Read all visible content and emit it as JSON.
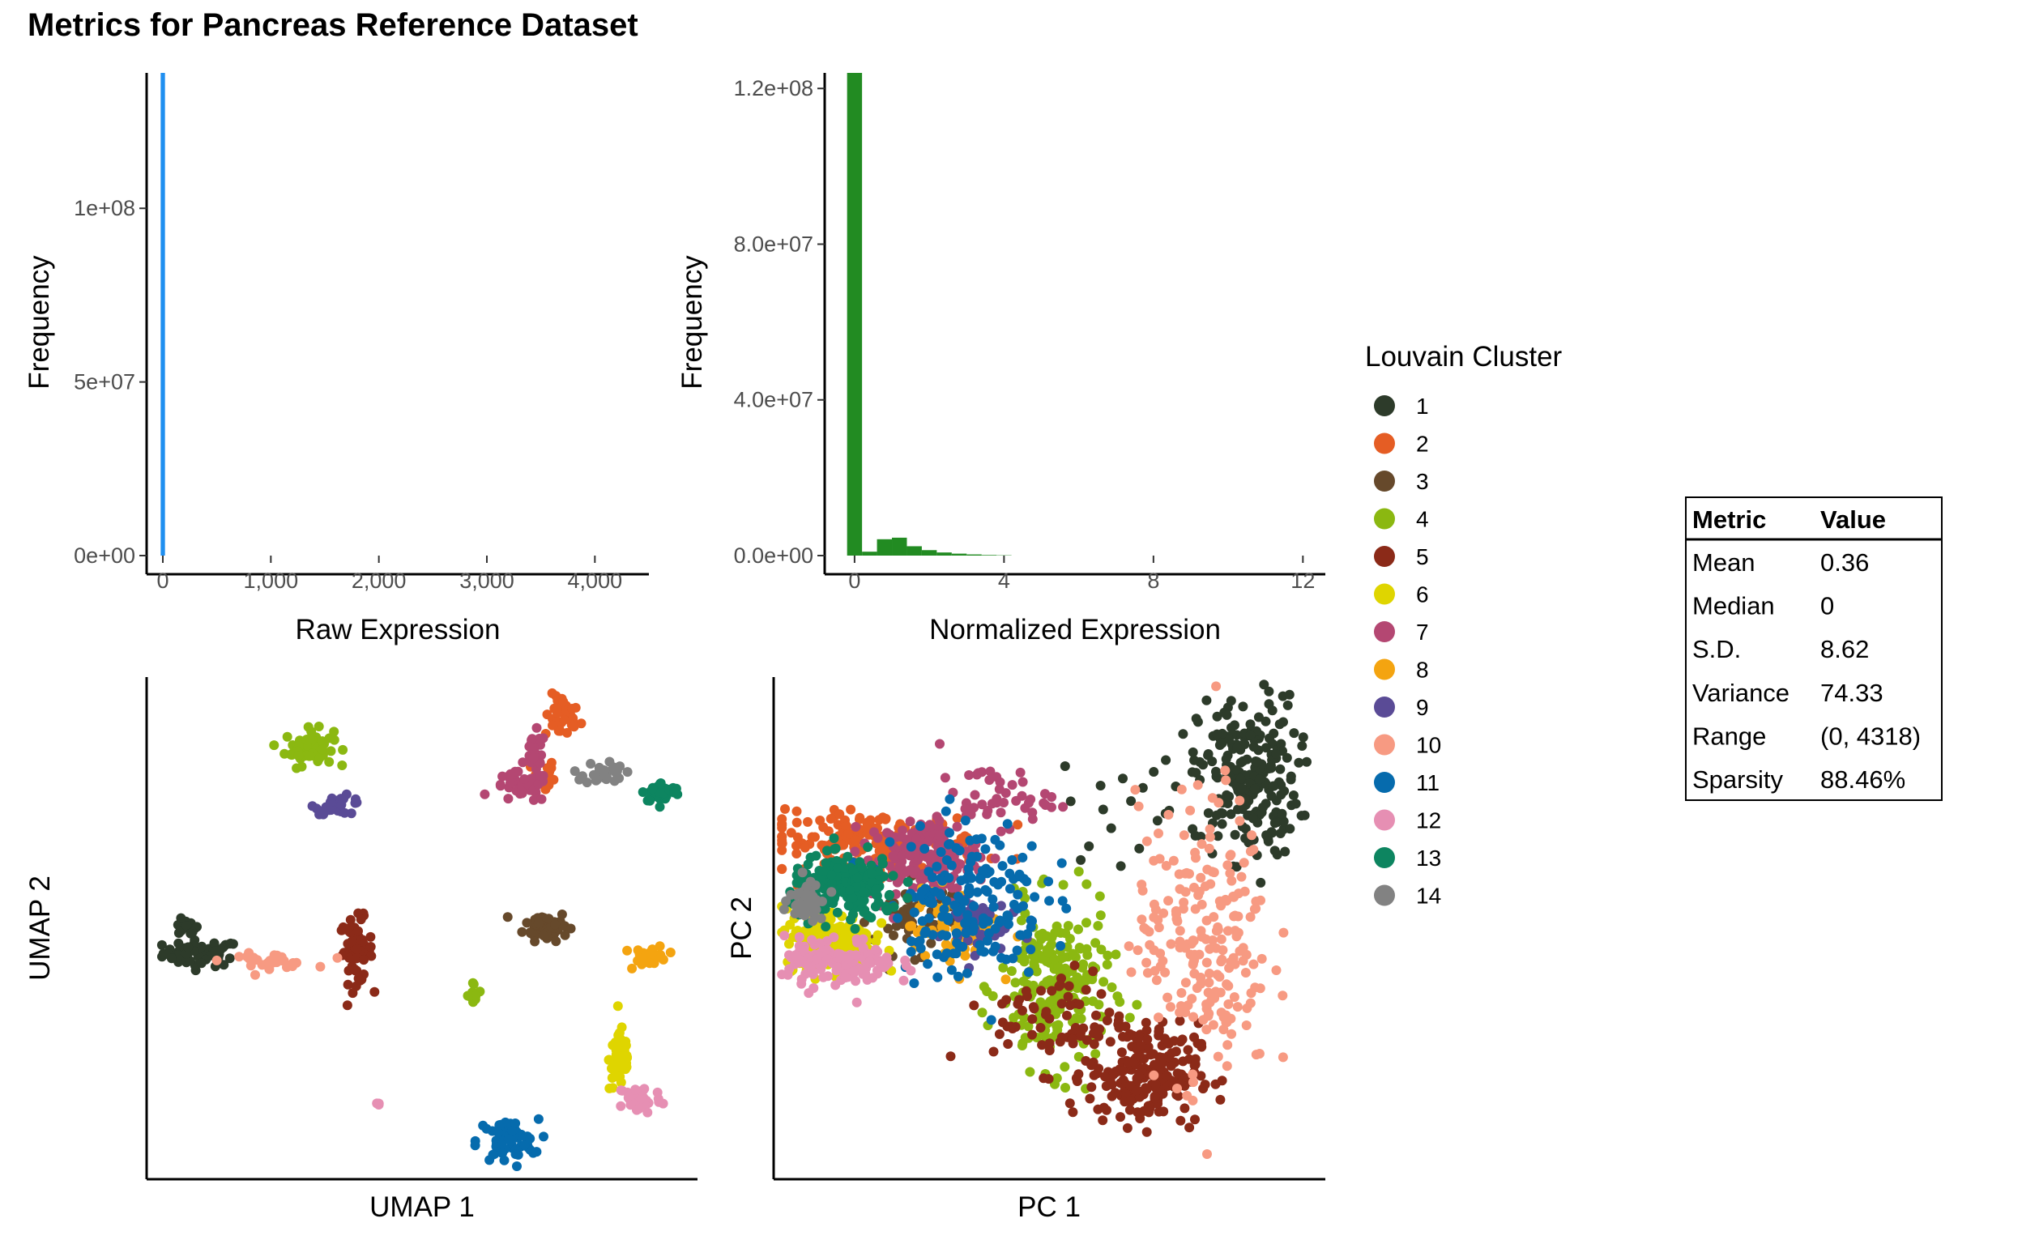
{
  "title": "Metrics for Pancreas Reference Dataset",
  "chart_data": [
    {
      "type": "bar",
      "name": "raw-histogram",
      "xlabel": "Raw Expression",
      "ylabel": "Frequency",
      "color": "#1f8ff0",
      "xlim": [
        -150,
        4500
      ],
      "ylim": [
        0,
        139000000
      ],
      "x_ticks": [
        {
          "value": 0,
          "label": "0"
        },
        {
          "value": 1000,
          "label": "1,000"
        },
        {
          "value": 2000,
          "label": "2,000"
        },
        {
          "value": 3000,
          "label": "3,000"
        },
        {
          "value": 4000,
          "label": "4,000"
        }
      ],
      "y_ticks": [
        {
          "value": 0,
          "label": "0e+00"
        },
        {
          "value": 50000000,
          "label": "5e+07"
        },
        {
          "value": 100000000,
          "label": "1e+08"
        }
      ],
      "bins": [
        {
          "x0": -20,
          "x1": 20,
          "count": 139000000
        }
      ]
    },
    {
      "type": "bar",
      "name": "normalized-histogram",
      "xlabel": "Normalized Expression",
      "ylabel": "Frequency",
      "color": "#228b22",
      "xlim": [
        -0.8,
        12.6
      ],
      "ylim": [
        0,
        124000000
      ],
      "x_ticks": [
        {
          "value": 0,
          "label": "0"
        },
        {
          "value": 4,
          "label": "4"
        },
        {
          "value": 8,
          "label": "8"
        },
        {
          "value": 12,
          "label": "12"
        }
      ],
      "y_ticks": [
        {
          "value": 0,
          "label": "0.0e+00"
        },
        {
          "value": 40000000,
          "label": "4.0e+07"
        },
        {
          "value": 80000000,
          "label": "8.0e+07"
        },
        {
          "value": 120000000,
          "label": "1.2e+08"
        }
      ],
      "bins": [
        {
          "x0": -0.2,
          "x1": 0.2,
          "count": 124000000
        },
        {
          "x0": 0.2,
          "x1": 0.6,
          "count": 1000000
        },
        {
          "x0": 0.6,
          "x1": 1.0,
          "count": 4200000
        },
        {
          "x0": 1.0,
          "x1": 1.4,
          "count": 4600000
        },
        {
          "x0": 1.4,
          "x1": 1.8,
          "count": 2400000
        },
        {
          "x0": 1.8,
          "x1": 2.2,
          "count": 1400000
        },
        {
          "x0": 2.2,
          "x1": 2.6,
          "count": 800000
        },
        {
          "x0": 2.6,
          "x1": 3.0,
          "count": 500000
        },
        {
          "x0": 3.0,
          "x1": 3.4,
          "count": 300000
        },
        {
          "x0": 3.4,
          "x1": 3.8,
          "count": 150000
        },
        {
          "x0": 3.8,
          "x1": 4.2,
          "count": 80000
        }
      ]
    },
    {
      "type": "scatter",
      "name": "umap-scatter",
      "xlabel": "UMAP 1",
      "ylabel": "UMAP 2",
      "xlim": [
        0,
        100
      ],
      "ylim": [
        0,
        100
      ],
      "grid": false,
      "clusters": [
        {
          "cluster": "1",
          "blobs": [
            [
              10,
              45,
              3.5,
              1.3,
              1.0
            ],
            [
              7,
              50,
              1.2,
              0.8,
              0.25
            ]
          ]
        },
        {
          "cluster": "2",
          "blobs": [
            [
              75.5,
              92,
              1.6,
              2.2,
              0.6
            ],
            [
              72,
              80,
              1.0,
              2.0,
              0.3
            ]
          ]
        },
        {
          "cluster": "3",
          "blobs": [
            [
              72.5,
              50.5,
              2.0,
              1.5,
              1.0
            ]
          ]
        },
        {
          "cluster": "4",
          "blobs": [
            [
              29.5,
              86,
              2.2,
              1.8,
              1.0
            ],
            [
              59.5,
              37,
              0.6,
              1.2,
              0.15
            ]
          ]
        },
        {
          "cluster": "5",
          "blobs": [
            [
              38,
              45.5,
              1.5,
              3.2,
              1.0
            ]
          ]
        },
        {
          "cluster": "6",
          "blobs": [
            [
              86,
              24,
              1.0,
              3.2,
              1.0
            ]
          ]
        },
        {
          "cluster": "7",
          "blobs": [
            [
              68,
              78,
              2.5,
              1.5,
              0.7
            ],
            [
              70.5,
              85,
              1.0,
              2.0,
              0.4
            ]
          ]
        },
        {
          "cluster": "8",
          "blobs": [
            [
              91.5,
              44.5,
              1.5,
              1.0,
              0.6
            ]
          ]
        },
        {
          "cluster": "9",
          "blobs": [
            [
              35,
              74.5,
              2.2,
              0.9,
              0.5
            ]
          ]
        },
        {
          "cluster": "10",
          "blobs": [
            [
              22,
              43.5,
              4.0,
              0.7,
              0.5
            ]
          ]
        },
        {
          "cluster": "11",
          "blobs": [
            [
              65.5,
              7.5,
              2.8,
              2.2,
              1.0
            ]
          ]
        },
        {
          "cluster": "12",
          "blobs": [
            [
              89.5,
              16,
              2.0,
              1.5,
              0.7
            ],
            [
              42,
              15,
              0.3,
              0.3,
              0.05
            ]
          ]
        },
        {
          "cluster": "13",
          "blobs": [
            [
              93.5,
              77,
              1.8,
              1.0,
              0.6
            ]
          ]
        },
        {
          "cluster": "14",
          "blobs": [
            [
              83,
              81,
              1.8,
              1.2,
              0.5
            ]
          ]
        }
      ]
    },
    {
      "type": "scatter",
      "name": "pca-scatter",
      "xlabel": "PC 1",
      "ylabel": "PC 2",
      "xlim": [
        0,
        100
      ],
      "ylim": [
        0,
        100
      ],
      "grid": false,
      "clusters": [
        {
          "cluster": "1",
          "blobs": [
            [
              86,
              80,
              4.5,
              8,
              1.0
            ],
            [
              68,
              75,
              8,
              6,
              0.1
            ]
          ]
        },
        {
          "cluster": "2",
          "blobs": [
            [
              18,
              67,
              10,
              3.0,
              0.8
            ]
          ]
        },
        {
          "cluster": "3",
          "blobs": [
            [
              26,
              52,
              4,
              3.5,
              0.3
            ]
          ]
        },
        {
          "cluster": "4",
          "blobs": [
            [
              51,
              38,
              5,
              8,
              1.0
            ]
          ]
        },
        {
          "cluster": "5",
          "blobs": [
            [
              67,
              21,
              5,
              5,
              1.0
            ],
            [
              52,
              32,
              6,
              5,
              0.3
            ]
          ]
        },
        {
          "cluster": "6",
          "blobs": [
            [
              10,
              48,
              4,
              3.0,
              1.0
            ]
          ]
        },
        {
          "cluster": "7",
          "blobs": [
            [
              27,
              64,
              5,
              4,
              0.7
            ],
            [
              40,
              76,
              5,
              3,
              0.2
            ]
          ]
        },
        {
          "cluster": "8",
          "blobs": [
            [
              33,
              50,
              4,
              4,
              0.3
            ]
          ]
        },
        {
          "cluster": "9",
          "blobs": [
            [
              36,
              51,
              3,
              3,
              0.2
            ]
          ]
        },
        {
          "cluster": "10",
          "blobs": [
            [
              78,
              48,
              6,
              14,
              1.0
            ]
          ]
        },
        {
          "cluster": "11",
          "blobs": [
            [
              35,
              56,
              7,
              8,
              0.8
            ]
          ]
        },
        {
          "cluster": "12",
          "blobs": [
            [
              12,
              43,
              5,
              2.5,
              0.6
            ]
          ]
        },
        {
          "cluster": "13",
          "blobs": [
            [
              13,
              58,
              5,
              3.0,
              1.0
            ]
          ]
        },
        {
          "cluster": "14",
          "blobs": [
            [
              6,
              56,
              1.5,
              2.0,
              0.25
            ]
          ]
        }
      ]
    }
  ],
  "legend": {
    "title": "Louvain Cluster",
    "items": [
      {
        "label": "1",
        "color": "#2d3b2a"
      },
      {
        "label": "2",
        "color": "#e55d24"
      },
      {
        "label": "3",
        "color": "#66492b"
      },
      {
        "label": "4",
        "color": "#8bb811"
      },
      {
        "label": "5",
        "color": "#8b2a18"
      },
      {
        "label": "6",
        "color": "#dfd500"
      },
      {
        "label": "7",
        "color": "#b44772"
      },
      {
        "label": "8",
        "color": "#f4a410"
      },
      {
        "label": "9",
        "color": "#5a4b96"
      },
      {
        "label": "10",
        "color": "#f79a82"
      },
      {
        "label": "11",
        "color": "#066bad"
      },
      {
        "label": "12",
        "color": "#e68fb3"
      },
      {
        "label": "13",
        "color": "#0d8560"
      },
      {
        "label": "14",
        "color": "#828282"
      }
    ]
  },
  "metrics_table": {
    "headers": [
      "Metric",
      "Value"
    ],
    "rows": [
      [
        "Mean",
        "0.36"
      ],
      [
        "Median",
        "0"
      ],
      [
        "S.D.",
        "8.62"
      ],
      [
        "Variance",
        "74.33"
      ],
      [
        "Range",
        "(0, 4318)"
      ],
      [
        "Sparsity",
        "88.46%"
      ]
    ]
  }
}
